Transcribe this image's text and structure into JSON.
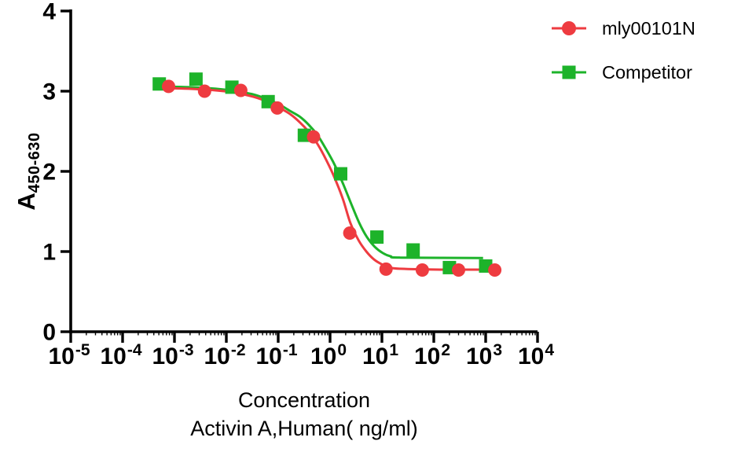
{
  "chart_data": {
    "type": "scatter",
    "subtype": "dose-response-curves",
    "x_scale": "log10",
    "xlim_log10": [
      -5,
      4
    ],
    "ylim": [
      0,
      4
    ],
    "grid": "off",
    "legend_position": "top-right",
    "x_axis": {
      "tick_base": "10",
      "tick_exponents": [
        -5,
        -4,
        -3,
        -2,
        -1,
        0,
        1,
        2,
        3,
        4
      ],
      "minor_tick_multiples": [
        2,
        3,
        4,
        5,
        6,
        7,
        8,
        9
      ],
      "title_line1": "Concentration",
      "title_line2": "Activin A,Human( ng/ml)"
    },
    "y_axis": {
      "ticks": [
        0,
        1,
        2,
        3,
        4
      ],
      "title_base": "A",
      "title_subscript": "450-630"
    },
    "series": [
      {
        "name": "mly00101N",
        "color": "#ee3b40",
        "marker": "circle",
        "x_concentration_ng_ml": [
          0.00077,
          0.0038,
          0.019,
          0.096,
          0.48,
          2.4,
          12,
          60,
          300,
          1500
        ],
        "y_absorbance": [
          3.06,
          3.0,
          3.01,
          2.79,
          2.43,
          1.23,
          0.78,
          0.77,
          0.77,
          0.77
        ],
        "fit_curve_logx_y": [
          [
            -3.36,
            3.04
          ],
          [
            -2.73,
            3.03
          ],
          [
            -2.2,
            3.01
          ],
          [
            -1.82,
            2.98
          ],
          [
            -1.48,
            2.93
          ],
          [
            -1.21,
            2.87
          ],
          [
            -0.97,
            2.79
          ],
          [
            -0.76,
            2.71
          ],
          [
            -0.58,
            2.61
          ],
          [
            -0.42,
            2.5
          ],
          [
            -0.27,
            2.37
          ],
          [
            -0.12,
            2.2
          ],
          [
            0.06,
            1.96
          ],
          [
            0.24,
            1.67
          ],
          [
            0.39,
            1.36
          ],
          [
            0.55,
            1.14
          ],
          [
            0.7,
            1.0
          ],
          [
            0.85,
            0.9
          ],
          [
            1.0,
            0.84
          ],
          [
            1.15,
            0.8
          ],
          [
            1.36,
            0.785
          ],
          [
            2.12,
            0.775
          ],
          [
            3.18,
            0.775
          ]
        ]
      },
      {
        "name": "Competitor",
        "color": "#1db32a",
        "marker": "square",
        "x_concentration_ng_ml": [
          0.00051,
          0.0026,
          0.0128,
          0.064,
          0.32,
          1.6,
          8,
          40,
          200,
          1000
        ],
        "y_absorbance": [
          3.09,
          3.15,
          3.05,
          2.87,
          2.45,
          1.97,
          1.18,
          1.02,
          0.8,
          0.82
        ],
        "fit_curve_logx_y": [
          [
            -3.36,
            3.06
          ],
          [
            -2.73,
            3.05
          ],
          [
            -2.2,
            3.03
          ],
          [
            -1.82,
            3.0
          ],
          [
            -1.48,
            2.96
          ],
          [
            -1.21,
            2.9
          ],
          [
            -0.97,
            2.83
          ],
          [
            -0.76,
            2.75
          ],
          [
            -0.58,
            2.68
          ],
          [
            -0.41,
            2.58
          ],
          [
            -0.24,
            2.45
          ],
          [
            -0.08,
            2.28
          ],
          [
            0.09,
            2.08
          ],
          [
            0.26,
            1.83
          ],
          [
            0.41,
            1.59
          ],
          [
            0.56,
            1.36
          ],
          [
            0.71,
            1.18
          ],
          [
            0.86,
            1.06
          ],
          [
            1.02,
            0.98
          ],
          [
            1.17,
            0.94
          ],
          [
            1.36,
            0.925
          ],
          [
            2.95,
            0.92
          ]
        ]
      }
    ]
  }
}
